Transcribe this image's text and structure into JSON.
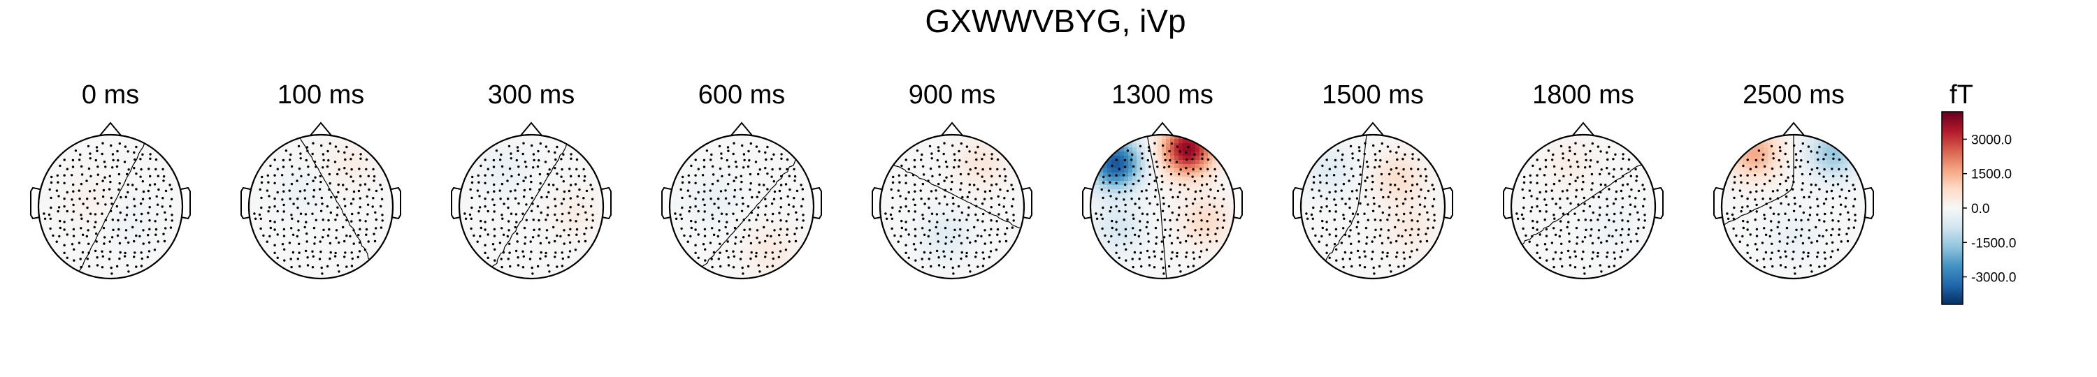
{
  "chart_data": {
    "type": "heatmap",
    "title": "GXWWVBYG, iVp",
    "panels": [
      {
        "label": "0 ms",
        "peaks": [
          [
            -0.3,
            0.1,
            200
          ],
          [
            0.3,
            -0.2,
            -200
          ]
        ]
      },
      {
        "label": "100 ms",
        "peaks": [
          [
            0.4,
            0.6,
            300
          ],
          [
            -0.3,
            0.2,
            -250
          ]
        ]
      },
      {
        "label": "300 ms",
        "peaks": [
          [
            0.6,
            -0.1,
            300
          ],
          [
            -0.4,
            0.5,
            -300
          ]
        ]
      },
      {
        "label": "600 ms",
        "peaks": [
          [
            0.4,
            -0.6,
            400
          ],
          [
            -0.4,
            0.1,
            -300
          ]
        ]
      },
      {
        "label": "900 ms",
        "peaks": [
          [
            0.4,
            0.6,
            500
          ],
          [
            -0.1,
            -0.4,
            -500
          ]
        ]
      },
      {
        "label": "1300 ms",
        "peaks": [
          [
            0.35,
            0.8,
            3800
          ],
          [
            -0.65,
            0.6,
            -3600
          ],
          [
            0.6,
            -0.2,
            800
          ],
          [
            -0.6,
            -0.3,
            -700
          ]
        ]
      },
      {
        "label": "1500 ms",
        "peaks": [
          [
            0.35,
            0.4,
            700
          ],
          [
            -0.6,
            0.5,
            -500
          ],
          [
            0.5,
            -0.3,
            400
          ]
        ]
      },
      {
        "label": "1800 ms",
        "peaks": [
          [
            -0.2,
            0.6,
            300
          ],
          [
            0.4,
            -0.3,
            -200
          ]
        ]
      },
      {
        "label": "2500 ms",
        "peaks": [
          [
            -0.55,
            0.75,
            1600
          ],
          [
            0.55,
            0.75,
            -1600
          ],
          [
            0,
            -0.4,
            -300
          ]
        ]
      }
    ],
    "colorbar": {
      "label": "fT",
      "min": -4200,
      "max": 4200,
      "ticks": [
        3000,
        1500,
        0,
        -1500,
        -3000
      ],
      "tick_labels": [
        "3000.0",
        "1500.0",
        "0.0",
        "-1500.0",
        "-3000.0"
      ],
      "colormap": "RdBu_r"
    },
    "colors": {
      "neg": "#053061",
      "mid": "#f7f7f7",
      "pos": "#67001f"
    }
  }
}
